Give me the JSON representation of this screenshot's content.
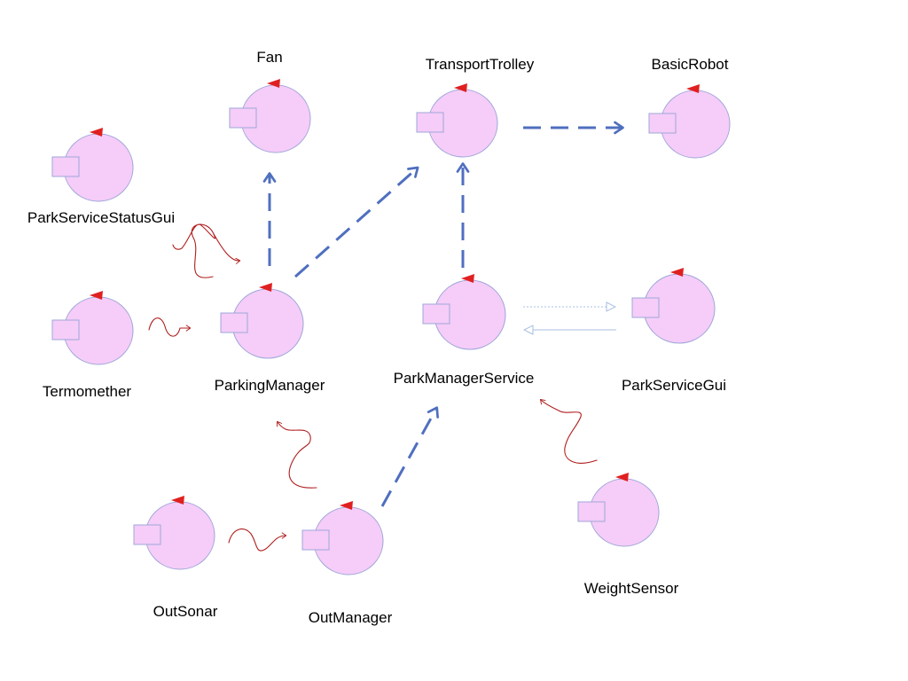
{
  "diagram": {
    "nodes": [
      {
        "id": "fan",
        "label": "Fan"
      },
      {
        "id": "transport-trolley",
        "label": "TransportTrolley"
      },
      {
        "id": "basic-robot",
        "label": "BasicRobot"
      },
      {
        "id": "park-service-status-gui",
        "label": "ParkServiceStatusGui"
      },
      {
        "id": "termomether",
        "label": "Termomether"
      },
      {
        "id": "parking-manager",
        "label": "ParkingManager"
      },
      {
        "id": "park-manager-service",
        "label": "ParkManagerService"
      },
      {
        "id": "park-service-gui",
        "label": "ParkServiceGui"
      },
      {
        "id": "out-sonar",
        "label": "OutSonar"
      },
      {
        "id": "out-manager",
        "label": "OutManager"
      },
      {
        "id": "weight-sensor",
        "label": "WeightSensor"
      }
    ],
    "colors": {
      "node_fill": "#f5cdf8",
      "node_stroke": "#9fa6d9",
      "port_fill": "#f5cdf8",
      "port_stroke": "#9fa6d9",
      "marker": "#e02020",
      "dispatch_arrow": "#4f6fbf",
      "event_squiggle": "#b01e1e",
      "request_arrow": "#a9bfe3"
    }
  }
}
